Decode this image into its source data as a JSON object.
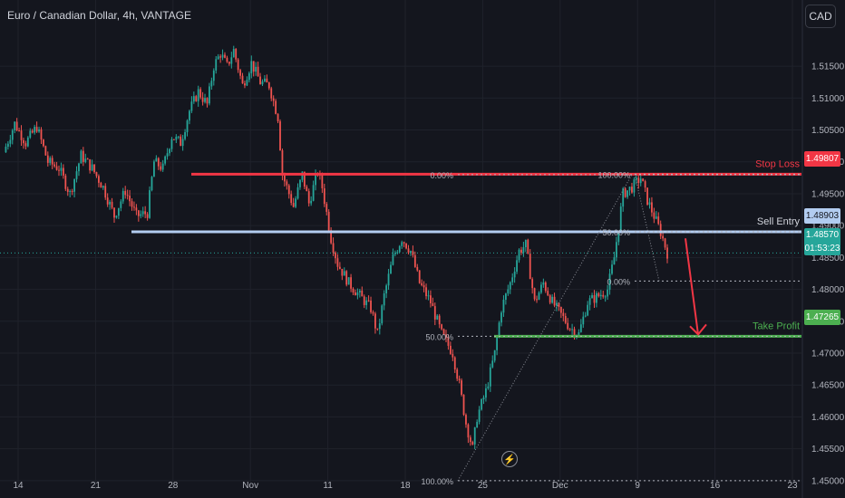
{
  "header": {
    "title": "Euro / Canadian Dollar, 4h, VANTAGE",
    "currency_button": "CAD"
  },
  "flash_icon": "lightning-icon",
  "price_tags": {
    "stop_loss": "1.49807",
    "sell_entry": "1.48903",
    "current_price": "1.48570",
    "countdown": "01:53:23",
    "take_profit": "1.47265"
  },
  "annotations": {
    "stop_loss_label": "Stop Loss",
    "sell_entry_label": "Sell Entry",
    "take_profit_label": "Take Profit",
    "fib_left_top": "0.00%",
    "fib_left_mid": "50.00%",
    "fib_left_bottom": "100.00%",
    "fib_right_top": "100.00%",
    "fib_right_mid": "50.00%",
    "fib_right_bottom": "0.00%"
  },
  "colors": {
    "background": "#14161e",
    "up": "#26a69a",
    "down": "#ef5350",
    "stop_loss": "#f23645",
    "sell_entry": "#b2ccf0",
    "take_profit": "#4caf50",
    "current": "#26a69a"
  },
  "chart_data": {
    "type": "candlestick",
    "title": "Euro / Canadian Dollar, 4h, VANTAGE",
    "ylim": [
      1.4487,
      1.5197
    ],
    "y_ticks": [
      "1.45000",
      "1.45500",
      "1.46000",
      "1.46500",
      "1.47000",
      "1.47500",
      "1.48000",
      "1.48500",
      "1.49000",
      "1.49500",
      "1.50000",
      "1.50500",
      "1.51000",
      "1.51500"
    ],
    "x_tick_labels": [
      "14",
      "21",
      "28",
      "Nov",
      "11",
      "18",
      "25",
      "Dec",
      "9",
      "16",
      "23"
    ],
    "x_tick_index": [
      0,
      35,
      70,
      105,
      140,
      175,
      210,
      245,
      280,
      315,
      350
    ],
    "close_path": [
      [
        0,
        1.5015
      ],
      [
        5,
        1.506
      ],
      [
        10,
        1.503
      ],
      [
        15,
        1.5055
      ],
      [
        20,
        1.5
      ],
      [
        25,
        1.499
      ],
      [
        30,
        1.495
      ],
      [
        35,
        1.501
      ],
      [
        40,
        1.499
      ],
      [
        45,
        1.496
      ],
      [
        50,
        1.4915
      ],
      [
        55,
        1.4955
      ],
      [
        60,
        1.4915
      ],
      [
        65,
        1.492
      ],
      [
        68,
        1.5
      ],
      [
        72,
        1.499
      ],
      [
        76,
        1.504
      ],
      [
        80,
        1.503
      ],
      [
        84,
        1.508
      ],
      [
        88,
        1.511
      ],
      [
        92,
        1.509
      ],
      [
        95,
        1.515
      ],
      [
        98,
        1.517
      ],
      [
        101,
        1.515
      ],
      [
        104,
        1.5175
      ],
      [
        108,
        1.512
      ],
      [
        112,
        1.5155
      ],
      [
        116,
        1.5125
      ],
      [
        120,
        1.512
      ],
      [
        124,
        1.507
      ],
      [
        126,
        1.498
      ],
      [
        128,
        1.496
      ],
      [
        131,
        1.493
      ],
      [
        135,
        1.498
      ],
      [
        138,
        1.4935
      ],
      [
        142,
        1.4985
      ],
      [
        144,
        1.496
      ],
      [
        146,
        1.492
      ],
      [
        148,
        1.488
      ],
      [
        151,
        1.484
      ],
      [
        156,
        1.481
      ],
      [
        161,
        1.479
      ],
      [
        166,
        1.477
      ],
      [
        169,
        1.473
      ],
      [
        172,
        1.479
      ],
      [
        176,
        1.485
      ],
      [
        180,
        1.488
      ],
      [
        184,
        1.486
      ],
      [
        188,
        1.481
      ],
      [
        193,
        1.478
      ],
      [
        198,
        1.473
      ],
      [
        203,
        1.47
      ],
      [
        206,
        1.465
      ],
      [
        209,
        1.459
      ],
      [
        212,
        1.455
      ],
      [
        214,
        1.46
      ],
      [
        218,
        1.464
      ],
      [
        222,
        1.47
      ],
      [
        225,
        1.477
      ],
      [
        229,
        1.481
      ],
      [
        233,
        1.486
      ],
      [
        236,
        1.487
      ],
      [
        240,
        1.478
      ],
      [
        244,
        1.481
      ],
      [
        248,
        1.478
      ],
      [
        252,
        1.476
      ],
      [
        256,
        1.474
      ],
      [
        260,
        1.473
      ],
      [
        264,
        1.478
      ],
      [
        269,
        1.479
      ],
      [
        273,
        1.48
      ],
      [
        276,
        1.485
      ],
      [
        280,
        1.495
      ],
      [
        284,
        1.496
      ],
      [
        288,
        1.4975
      ],
      [
        291,
        1.494
      ],
      [
        294,
        1.4915
      ],
      [
        297,
        1.489
      ],
      [
        300,
        1.4857
      ]
    ],
    "bars_total": 302,
    "fib_retracement_left": {
      "levels": [
        "0.00%",
        "50.00%",
        "100.00%"
      ],
      "prices": [
        1.498,
        1.47265,
        1.45
      ]
    },
    "fib_retracement_right": {
      "levels": [
        "100.00%",
        "50.00%",
        "0.00%"
      ],
      "prices": [
        1.49807,
        1.48903,
        1.4813
      ]
    },
    "levels": [
      {
        "name": "Stop Loss",
        "price": 1.49807
      },
      {
        "name": "Sell Entry",
        "price": 1.48903
      },
      {
        "name": "Take Profit",
        "price": 1.47265
      }
    ],
    "current_price": 1.4857
  }
}
